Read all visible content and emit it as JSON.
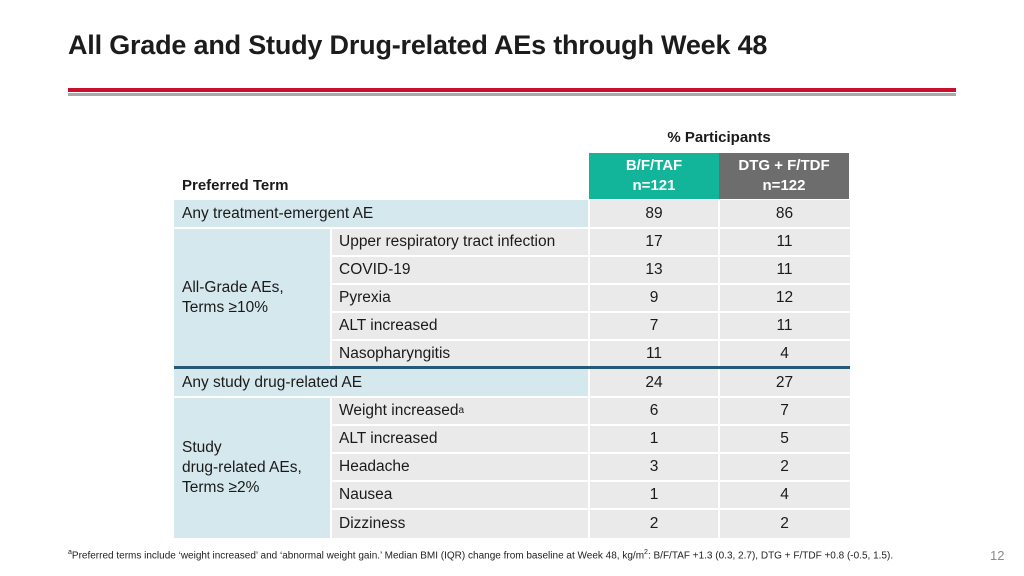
{
  "slide": {
    "title": "All Grade and Study Drug-related AEs through Week 48",
    "page_number": "12"
  },
  "table": {
    "caption": "% Participants",
    "row_header": "Preferred Term",
    "columns": [
      {
        "name": "B/F/TAF",
        "n": "n=121",
        "color": "#12b59a"
      },
      {
        "name": "DTG + F/TDF",
        "n": "n=122",
        "color": "#6d6d6d"
      }
    ],
    "any_teae": {
      "label": "Any treatment-emergent AE",
      "values": [
        "89",
        "86"
      ]
    },
    "all_grade": {
      "group_line1": "All-Grade AEs,",
      "group_line2": "Terms ≥10%",
      "rows": [
        {
          "term": "Upper respiratory tract infection",
          "values": [
            "17",
            "11"
          ]
        },
        {
          "term": "COVID-19",
          "values": [
            "13",
            "11"
          ]
        },
        {
          "term": "Pyrexia",
          "values": [
            "9",
            "12"
          ]
        },
        {
          "term": "ALT increased",
          "values": [
            "7",
            "11"
          ]
        },
        {
          "term": "Nasopharyngitis",
          "values": [
            "11",
            "4"
          ]
        }
      ]
    },
    "any_drug_related": {
      "label": "Any study drug-related AE",
      "values": [
        "24",
        "27"
      ]
    },
    "drug_related": {
      "group_line1": "Study",
      "group_line2": "drug-related AEs,",
      "group_line3": "Terms ≥2%",
      "rows": [
        {
          "term": "Weight increased",
          "sup": "a",
          "values": [
            "6",
            "7"
          ]
        },
        {
          "term": "ALT increased",
          "values": [
            "1",
            "5"
          ]
        },
        {
          "term": "Headache",
          "values": [
            "3",
            "2"
          ]
        },
        {
          "term": "Nausea",
          "values": [
            "1",
            "4"
          ]
        },
        {
          "term": "Dizziness",
          "values": [
            "2",
            "2"
          ]
        }
      ]
    }
  },
  "footnote": {
    "marker": "a",
    "text_part1": "Preferred terms include ‘weight increased’ and ‘abnormal weight gain.’ Median BMI (IQR) change from baseline at Week 48, kg/m",
    "exponent": "2",
    "text_part2": ": B/F/TAF +1.3 (0.3, 2.7), DTG + F/TDF +0.8 (-0.5, 1.5)."
  }
}
